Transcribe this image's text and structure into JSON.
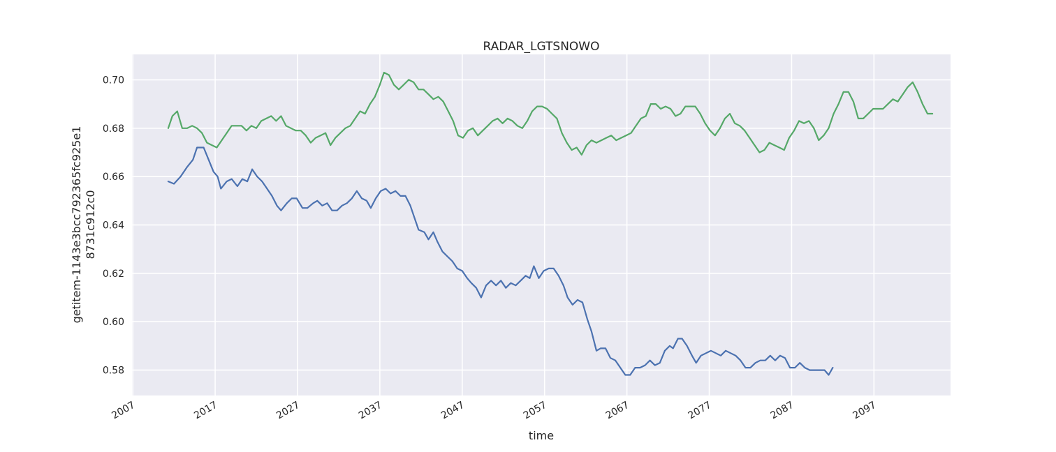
{
  "chart_data": {
    "type": "line",
    "title": "RADAR_LGTSNOWO",
    "xlabel": "time",
    "ylabel_lines": [
      "getitem-1143e3bcc792365fc925e1",
      "8731c912c0"
    ],
    "xlim": [
      2006.9,
      2106.3
    ],
    "ylim": [
      0.5695,
      0.7105
    ],
    "x_ticks": [
      2007,
      2017,
      2027,
      2037,
      2047,
      2057,
      2067,
      2077,
      2087,
      2097
    ],
    "x_tick_labels": [
      "2007",
      "2017",
      "2027",
      "2037",
      "2047",
      "2057",
      "2067",
      "2077",
      "2087",
      "2097"
    ],
    "y_ticks": [
      0.58,
      0.6,
      0.62,
      0.64,
      0.66,
      0.68,
      0.7
    ],
    "y_tick_labels": [
      "0.58",
      "0.60",
      "0.62",
      "0.64",
      "0.66",
      "0.68",
      "0.70"
    ],
    "grid": true,
    "background": "#eaeaf2",
    "series": [
      {
        "color": "#4c72b0",
        "points": [
          [
            2011.3,
            0.658
          ],
          [
            2012.0,
            0.657
          ],
          [
            2012.8,
            0.66
          ],
          [
            2013.6,
            0.664
          ],
          [
            2014.3,
            0.667
          ],
          [
            2014.8,
            0.672
          ],
          [
            2015.6,
            0.672
          ],
          [
            2016.2,
            0.667
          ],
          [
            2016.8,
            0.662
          ],
          [
            2017.3,
            0.66
          ],
          [
            2017.7,
            0.655
          ],
          [
            2018.4,
            0.658
          ],
          [
            2019.0,
            0.659
          ],
          [
            2019.7,
            0.656
          ],
          [
            2020.3,
            0.659
          ],
          [
            2020.9,
            0.658
          ],
          [
            2021.5,
            0.663
          ],
          [
            2022.1,
            0.66
          ],
          [
            2022.7,
            0.658
          ],
          [
            2023.3,
            0.655
          ],
          [
            2023.9,
            0.652
          ],
          [
            2024.5,
            0.648
          ],
          [
            2025.0,
            0.646
          ],
          [
            2025.7,
            0.649
          ],
          [
            2026.3,
            0.651
          ],
          [
            2026.9,
            0.651
          ],
          [
            2027.6,
            0.647
          ],
          [
            2028.2,
            0.647
          ],
          [
            2028.9,
            0.649
          ],
          [
            2029.4,
            0.65
          ],
          [
            2030.0,
            0.648
          ],
          [
            2030.6,
            0.649
          ],
          [
            2031.2,
            0.646
          ],
          [
            2031.8,
            0.646
          ],
          [
            2032.4,
            0.648
          ],
          [
            2033.0,
            0.649
          ],
          [
            2033.6,
            0.651
          ],
          [
            2034.2,
            0.654
          ],
          [
            2034.8,
            0.651
          ],
          [
            2035.4,
            0.65
          ],
          [
            2035.9,
            0.647
          ],
          [
            2036.5,
            0.651
          ],
          [
            2037.1,
            0.654
          ],
          [
            2037.7,
            0.655
          ],
          [
            2038.3,
            0.653
          ],
          [
            2038.9,
            0.654
          ],
          [
            2039.5,
            0.652
          ],
          [
            2040.1,
            0.652
          ],
          [
            2040.7,
            0.648
          ],
          [
            2041.2,
            0.643
          ],
          [
            2041.7,
            0.638
          ],
          [
            2042.4,
            0.637
          ],
          [
            2042.9,
            0.634
          ],
          [
            2043.5,
            0.637
          ],
          [
            2044.0,
            0.633
          ],
          [
            2044.6,
            0.629
          ],
          [
            2045.2,
            0.627
          ],
          [
            2045.8,
            0.625
          ],
          [
            2046.4,
            0.622
          ],
          [
            2047.0,
            0.621
          ],
          [
            2047.6,
            0.618
          ],
          [
            2048.1,
            0.616
          ],
          [
            2048.7,
            0.614
          ],
          [
            2049.3,
            0.61
          ],
          [
            2049.9,
            0.615
          ],
          [
            2050.5,
            0.617
          ],
          [
            2051.1,
            0.615
          ],
          [
            2051.7,
            0.617
          ],
          [
            2052.3,
            0.614
          ],
          [
            2052.9,
            0.616
          ],
          [
            2053.5,
            0.615
          ],
          [
            2054.1,
            0.617
          ],
          [
            2054.7,
            0.619
          ],
          [
            2055.2,
            0.618
          ],
          [
            2055.7,
            0.623
          ],
          [
            2056.3,
            0.618
          ],
          [
            2056.9,
            0.621
          ],
          [
            2057.5,
            0.622
          ],
          [
            2058.1,
            0.622
          ],
          [
            2058.7,
            0.619
          ],
          [
            2059.3,
            0.615
          ],
          [
            2059.8,
            0.61
          ],
          [
            2060.4,
            0.607
          ],
          [
            2061.0,
            0.609
          ],
          [
            2061.6,
            0.608
          ],
          [
            2062.2,
            0.601
          ],
          [
            2062.7,
            0.596
          ],
          [
            2063.3,
            0.588
          ],
          [
            2063.8,
            0.589
          ],
          [
            2064.4,
            0.589
          ],
          [
            2065.0,
            0.585
          ],
          [
            2065.6,
            0.584
          ],
          [
            2066.2,
            0.581
          ],
          [
            2066.8,
            0.578
          ],
          [
            2067.4,
            0.578
          ],
          [
            2068.0,
            0.581
          ],
          [
            2068.6,
            0.581
          ],
          [
            2069.2,
            0.582
          ],
          [
            2069.8,
            0.584
          ],
          [
            2070.4,
            0.582
          ],
          [
            2071.0,
            0.583
          ],
          [
            2071.6,
            0.588
          ],
          [
            2072.2,
            0.59
          ],
          [
            2072.6,
            0.589
          ],
          [
            2073.2,
            0.593
          ],
          [
            2073.7,
            0.593
          ],
          [
            2074.3,
            0.59
          ],
          [
            2074.9,
            0.586
          ],
          [
            2075.4,
            0.583
          ],
          [
            2076.0,
            0.586
          ],
          [
            2076.6,
            0.587
          ],
          [
            2077.2,
            0.588
          ],
          [
            2077.8,
            0.587
          ],
          [
            2078.4,
            0.586
          ],
          [
            2079.0,
            0.588
          ],
          [
            2079.6,
            0.587
          ],
          [
            2080.2,
            0.586
          ],
          [
            2080.8,
            0.584
          ],
          [
            2081.4,
            0.581
          ],
          [
            2082.0,
            0.581
          ],
          [
            2082.6,
            0.583
          ],
          [
            2083.2,
            0.584
          ],
          [
            2083.8,
            0.584
          ],
          [
            2084.4,
            0.586
          ],
          [
            2085.0,
            0.584
          ],
          [
            2085.6,
            0.586
          ],
          [
            2086.2,
            0.585
          ],
          [
            2086.8,
            0.581
          ],
          [
            2087.4,
            0.581
          ],
          [
            2088.0,
            0.583
          ],
          [
            2088.6,
            0.581
          ],
          [
            2089.2,
            0.58
          ],
          [
            2089.8,
            0.58
          ],
          [
            2090.4,
            0.58
          ],
          [
            2091.0,
            0.58
          ],
          [
            2091.5,
            0.578
          ],
          [
            2092.0,
            0.581
          ]
        ]
      },
      {
        "color": "#55a868",
        "points": [
          [
            2011.3,
            0.68
          ],
          [
            2011.8,
            0.685
          ],
          [
            2012.4,
            0.687
          ],
          [
            2013.0,
            0.68
          ],
          [
            2013.6,
            0.68
          ],
          [
            2014.2,
            0.681
          ],
          [
            2014.8,
            0.68
          ],
          [
            2015.4,
            0.678
          ],
          [
            2016.0,
            0.674
          ],
          [
            2016.6,
            0.673
          ],
          [
            2017.2,
            0.672
          ],
          [
            2017.8,
            0.675
          ],
          [
            2018.4,
            0.678
          ],
          [
            2019.0,
            0.681
          ],
          [
            2019.6,
            0.681
          ],
          [
            2020.2,
            0.681
          ],
          [
            2020.8,
            0.679
          ],
          [
            2021.4,
            0.681
          ],
          [
            2022.0,
            0.68
          ],
          [
            2022.6,
            0.683
          ],
          [
            2023.2,
            0.684
          ],
          [
            2023.8,
            0.685
          ],
          [
            2024.4,
            0.683
          ],
          [
            2025.0,
            0.685
          ],
          [
            2025.6,
            0.681
          ],
          [
            2026.2,
            0.68
          ],
          [
            2026.8,
            0.679
          ],
          [
            2027.4,
            0.679
          ],
          [
            2028.0,
            0.677
          ],
          [
            2028.6,
            0.674
          ],
          [
            2029.2,
            0.676
          ],
          [
            2029.8,
            0.677
          ],
          [
            2030.4,
            0.678
          ],
          [
            2031.0,
            0.673
          ],
          [
            2031.6,
            0.676
          ],
          [
            2032.2,
            0.678
          ],
          [
            2032.8,
            0.68
          ],
          [
            2033.4,
            0.681
          ],
          [
            2034.0,
            0.684
          ],
          [
            2034.6,
            0.687
          ],
          [
            2035.2,
            0.686
          ],
          [
            2035.8,
            0.69
          ],
          [
            2036.4,
            0.693
          ],
          [
            2037.0,
            0.698
          ],
          [
            2037.5,
            0.703
          ],
          [
            2038.1,
            0.702
          ],
          [
            2038.7,
            0.698
          ],
          [
            2039.3,
            0.696
          ],
          [
            2039.9,
            0.698
          ],
          [
            2040.5,
            0.7
          ],
          [
            2041.1,
            0.699
          ],
          [
            2041.7,
            0.696
          ],
          [
            2042.3,
            0.696
          ],
          [
            2042.9,
            0.694
          ],
          [
            2043.5,
            0.692
          ],
          [
            2044.1,
            0.693
          ],
          [
            2044.7,
            0.691
          ],
          [
            2045.3,
            0.687
          ],
          [
            2045.9,
            0.683
          ],
          [
            2046.5,
            0.677
          ],
          [
            2047.1,
            0.676
          ],
          [
            2047.7,
            0.679
          ],
          [
            2048.3,
            0.68
          ],
          [
            2048.9,
            0.677
          ],
          [
            2049.5,
            0.679
          ],
          [
            2050.1,
            0.681
          ],
          [
            2050.7,
            0.683
          ],
          [
            2051.3,
            0.684
          ],
          [
            2051.9,
            0.682
          ],
          [
            2052.5,
            0.684
          ],
          [
            2053.1,
            0.683
          ],
          [
            2053.7,
            0.681
          ],
          [
            2054.3,
            0.68
          ],
          [
            2054.9,
            0.683
          ],
          [
            2055.5,
            0.687
          ],
          [
            2056.1,
            0.689
          ],
          [
            2056.7,
            0.689
          ],
          [
            2057.3,
            0.688
          ],
          [
            2057.9,
            0.686
          ],
          [
            2058.5,
            0.684
          ],
          [
            2059.1,
            0.678
          ],
          [
            2059.7,
            0.674
          ],
          [
            2060.3,
            0.671
          ],
          [
            2060.9,
            0.672
          ],
          [
            2061.5,
            0.669
          ],
          [
            2062.1,
            0.673
          ],
          [
            2062.7,
            0.675
          ],
          [
            2063.3,
            0.674
          ],
          [
            2063.9,
            0.675
          ],
          [
            2064.5,
            0.676
          ],
          [
            2065.1,
            0.677
          ],
          [
            2065.7,
            0.675
          ],
          [
            2066.3,
            0.676
          ],
          [
            2066.9,
            0.677
          ],
          [
            2067.5,
            0.678
          ],
          [
            2068.1,
            0.681
          ],
          [
            2068.7,
            0.684
          ],
          [
            2069.3,
            0.685
          ],
          [
            2069.9,
            0.69
          ],
          [
            2070.5,
            0.69
          ],
          [
            2071.1,
            0.688
          ],
          [
            2071.7,
            0.689
          ],
          [
            2072.3,
            0.688
          ],
          [
            2072.9,
            0.685
          ],
          [
            2073.5,
            0.686
          ],
          [
            2074.1,
            0.689
          ],
          [
            2074.7,
            0.689
          ],
          [
            2075.3,
            0.689
          ],
          [
            2075.9,
            0.686
          ],
          [
            2076.5,
            0.682
          ],
          [
            2077.1,
            0.679
          ],
          [
            2077.7,
            0.677
          ],
          [
            2078.3,
            0.68
          ],
          [
            2078.9,
            0.684
          ],
          [
            2079.5,
            0.686
          ],
          [
            2080.1,
            0.682
          ],
          [
            2080.7,
            0.681
          ],
          [
            2081.3,
            0.679
          ],
          [
            2081.9,
            0.676
          ],
          [
            2082.5,
            0.673
          ],
          [
            2083.1,
            0.67
          ],
          [
            2083.7,
            0.671
          ],
          [
            2084.3,
            0.674
          ],
          [
            2084.9,
            0.673
          ],
          [
            2085.5,
            0.672
          ],
          [
            2086.1,
            0.671
          ],
          [
            2086.7,
            0.676
          ],
          [
            2087.3,
            0.679
          ],
          [
            2087.9,
            0.683
          ],
          [
            2088.5,
            0.682
          ],
          [
            2089.1,
            0.683
          ],
          [
            2089.7,
            0.68
          ],
          [
            2090.3,
            0.675
          ],
          [
            2090.9,
            0.677
          ],
          [
            2091.5,
            0.68
          ],
          [
            2092.1,
            0.686
          ],
          [
            2092.7,
            0.69
          ],
          [
            2093.3,
            0.695
          ],
          [
            2093.9,
            0.695
          ],
          [
            2094.5,
            0.691
          ],
          [
            2095.1,
            0.684
          ],
          [
            2095.7,
            0.684
          ],
          [
            2096.3,
            0.686
          ],
          [
            2096.9,
            0.688
          ],
          [
            2097.5,
            0.688
          ],
          [
            2098.1,
            0.688
          ],
          [
            2098.7,
            0.69
          ],
          [
            2099.3,
            0.692
          ],
          [
            2099.9,
            0.691
          ],
          [
            2100.5,
            0.694
          ],
          [
            2101.1,
            0.697
          ],
          [
            2101.7,
            0.699
          ],
          [
            2102.3,
            0.695
          ],
          [
            2102.9,
            0.69
          ],
          [
            2103.5,
            0.686
          ],
          [
            2104.1,
            0.686
          ]
        ]
      }
    ]
  }
}
